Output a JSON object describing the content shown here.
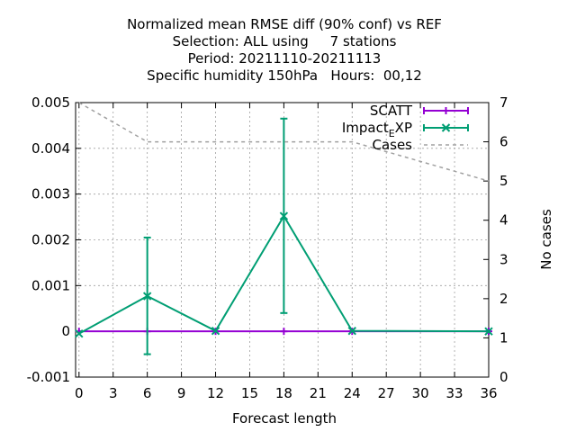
{
  "chart_data": {
    "type": "line",
    "title_lines": [
      "Normalized mean RMSE diff (90% conf) vs REF",
      "Selection: ALL using     7 stations",
      "Period: 20211110-20211113",
      "Specific humidity 150hPa   Hours:  00,12"
    ],
    "xlabel": "Forecast length",
    "ylabel": "",
    "y2label": "No cases",
    "xlim": [
      -0.3,
      36
    ],
    "ylim": [
      -0.001,
      0.005
    ],
    "y2lim": [
      0,
      7
    ],
    "xticks": [
      "0",
      "3",
      "6",
      "9",
      "12",
      "15",
      "18",
      "21",
      "24",
      "27",
      "30",
      "33",
      "36"
    ],
    "yticks": [
      "-0.001",
      "0",
      "0.001",
      "0.002",
      "0.003",
      "0.004",
      "0.005"
    ],
    "y2ticks": [
      "0",
      "1",
      "2",
      "3",
      "4",
      "5",
      "6",
      "7"
    ],
    "grid": true,
    "legend_position": "top-right",
    "series": [
      {
        "name": "SCATT",
        "color": "#9400d3",
        "axis": "y1",
        "x": [
          0,
          6,
          12,
          18,
          24,
          36
        ],
        "values": [
          0,
          0,
          0,
          0,
          0,
          0
        ],
        "err_low": [
          0,
          0,
          0,
          0,
          0,
          0
        ],
        "err_high": [
          0,
          0,
          0,
          0,
          0,
          0
        ]
      },
      {
        "name": "Impact_EXP",
        "legend_main": "Impact",
        "legend_sub": "E",
        "legend_tail": "XP",
        "color": "#009e73",
        "axis": "y1",
        "x": [
          0,
          6,
          12,
          18,
          24,
          36
        ],
        "values": [
          -5e-05,
          0.00077,
          1e-05,
          0.00252,
          1e-05,
          0.0
        ],
        "err_low": [
          -5e-05,
          -0.0005,
          0.0,
          0.0004,
          0.0,
          0.0
        ],
        "err_high": [
          -5e-05,
          0.00205,
          0.0,
          0.00465,
          0.0,
          0.0
        ]
      },
      {
        "name": "Cases",
        "color": "#a0a0a0",
        "axis": "y2",
        "dashed": true,
        "x": [
          0,
          6,
          12,
          18,
          24,
          36
        ],
        "values": [
          7,
          6,
          6,
          6,
          6,
          5
        ]
      }
    ]
  }
}
